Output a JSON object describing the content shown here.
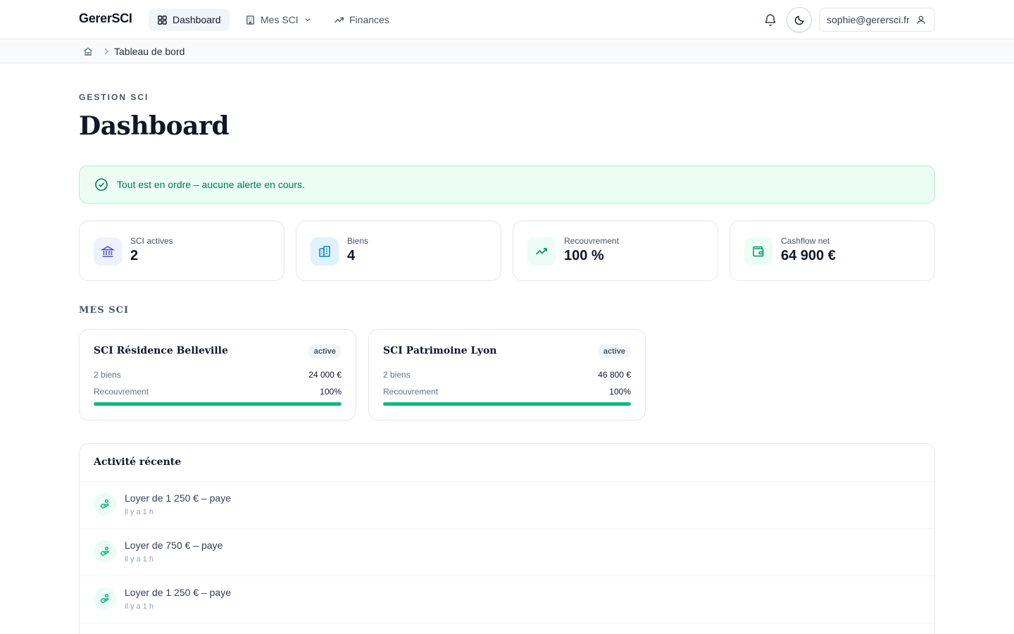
{
  "app": {
    "logo": "GererSCI"
  },
  "nav": {
    "dashboard": "Dashboard",
    "mes_sci": "Mes SCI",
    "finances": "Finances"
  },
  "user": {
    "email": "sophie@gerersci.fr"
  },
  "breadcrumb": {
    "current": "Tableau de bord"
  },
  "header": {
    "eyebrow": "GESTION SCI",
    "title": "Dashboard"
  },
  "alert": {
    "message": "Tout est en ordre – aucune alerte en cours."
  },
  "stats": [
    {
      "label": "SCI actives",
      "value": "2",
      "icon": "bank-icon"
    },
    {
      "label": "Biens",
      "value": "4",
      "icon": "building-icon"
    },
    {
      "label": "Recouvrement",
      "value": "100 %",
      "icon": "trending-up-icon"
    },
    {
      "label": "Cashflow net",
      "value": "64 900 €",
      "icon": "wallet-icon"
    }
  ],
  "sections": {
    "mes_sci": "MES SCI",
    "activity": "Activité récente"
  },
  "sci_cards": [
    {
      "name": "SCI Résidence Belleville",
      "status": "active",
      "biens": "2 biens",
      "amount": "24 000 €",
      "recouvrement_label": "Recouvrement",
      "recouvrement": "100%",
      "recouvrement_fraction": 1.0
    },
    {
      "name": "SCI Patrimoine Lyon",
      "status": "active",
      "biens": "2 biens",
      "amount": "46 800 €",
      "recouvrement_label": "Recouvrement",
      "recouvrement": "100%",
      "recouvrement_fraction": 1.0
    }
  ],
  "activity": [
    {
      "title": "Loyer de 1 250 € – paye",
      "time": "il y a 1 h"
    },
    {
      "title": "Loyer de 750 € – paye",
      "time": "il y a 1 h"
    },
    {
      "title": "Loyer de 1 250 € – paye",
      "time": "il y a 1 h"
    }
  ]
}
